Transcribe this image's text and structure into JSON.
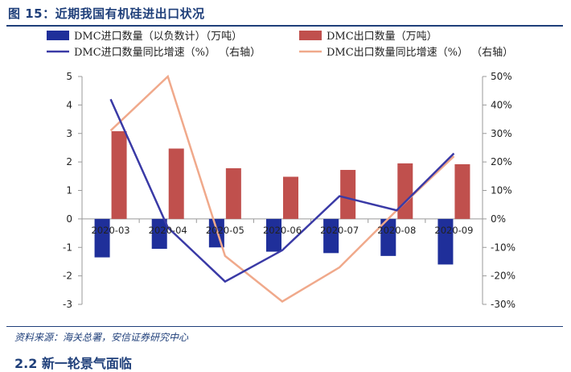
{
  "header": {
    "title": "图 15：近期我国有机硅进出口状况"
  },
  "footer": {
    "source": "资料来源：海关总署，安信证券研究中心",
    "next_section": "2.2 新一轮景气面临"
  },
  "colors": {
    "import_bar": "#1f2f9a",
    "export_bar": "#c0504d",
    "import_line": "#3a3aa6",
    "export_line": "#f0a98b",
    "title": "#1f3f7a"
  },
  "chart_data": {
    "type": "bar",
    "categories": [
      "2020-03",
      "2020-04",
      "2020-05",
      "2020-06",
      "2020-07",
      "2020-08",
      "2020-09"
    ],
    "series": [
      {
        "name": "DMC进口数量（以负数计）（万吨）",
        "type": "bar",
        "axis": "left",
        "values": [
          -1.35,
          -1.05,
          -1.0,
          -1.15,
          -1.2,
          -1.3,
          -1.6
        ]
      },
      {
        "name": "DMC出口数量（万吨）",
        "type": "bar",
        "axis": "left",
        "values": [
          3.08,
          2.47,
          1.78,
          1.48,
          1.72,
          1.95,
          1.92
        ]
      },
      {
        "name": "DMC进口数量同比增速（%） （右轴）",
        "type": "line",
        "axis": "right",
        "values": [
          42,
          -3,
          -22,
          -11,
          8,
          3,
          23
        ]
      },
      {
        "name": "DMC出口数量同比增速（%） （右轴）",
        "type": "line",
        "axis": "right",
        "values": [
          31,
          50,
          -13,
          -29,
          -17,
          3,
          22
        ]
      }
    ],
    "ylim_left": [
      -3,
      5
    ],
    "yticks_left": [
      "5",
      "4",
      "3",
      "2",
      "1",
      "0",
      "-1",
      "-2",
      "-3"
    ],
    "ylim_right": [
      -30,
      50
    ],
    "yticks_right": [
      "50%",
      "40%",
      "30%",
      "20%",
      "10%",
      "0%",
      "-10%",
      "-20%",
      "-30%"
    ],
    "legend_position": "top",
    "grid": false
  }
}
